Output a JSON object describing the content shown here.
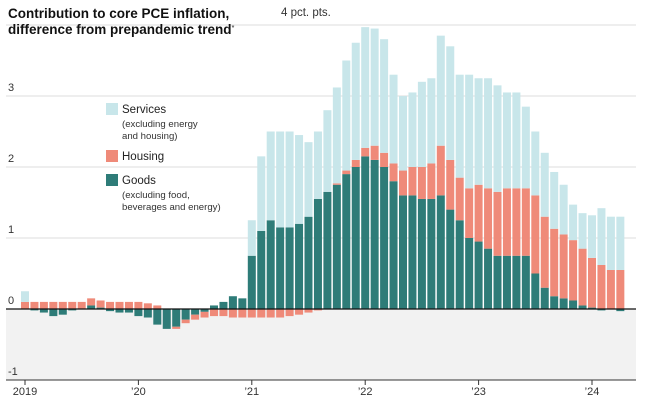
{
  "title": {
    "line1": "Contribution to core PCE inflation,",
    "line2": "difference from prepandemic trend",
    "footnote_mark": "*"
  },
  "unit_label": "4 pct. pts.",
  "legend": [
    {
      "name": "Services",
      "note": [
        "(excluding energy",
        "and housing)"
      ],
      "color": "#c8e6ea"
    },
    {
      "name": "Housing",
      "note": [],
      "color": "#ef8a79"
    },
    {
      "name": "Goods",
      "note": [
        "(excluding food,",
        "beverages and energy)"
      ],
      "color": "#2e7c78"
    }
  ],
  "chart_data": {
    "type": "bar",
    "stacked": true,
    "frequency": "monthly",
    "start": "2019-01",
    "ylim": [
      -1,
      4
    ],
    "yticks": [
      {
        "value": -1,
        "label": "-1"
      },
      {
        "value": 0,
        "label": "0"
      },
      {
        "value": 1,
        "label": "1"
      },
      {
        "value": 2,
        "label": "2"
      },
      {
        "value": 3,
        "label": "3"
      },
      {
        "value": 4,
        "label": "4 pct. pts."
      }
    ],
    "xticks": [
      {
        "date": "2019-01",
        "label": "2019"
      },
      {
        "date": "2020-01",
        "label": "’20"
      },
      {
        "date": "2021-01",
        "label": "’21"
      },
      {
        "date": "2022-01",
        "label": "’22"
      },
      {
        "date": "2023-01",
        "label": "’23"
      },
      {
        "date": "2024-01",
        "label": "’24"
      }
    ],
    "grid": true,
    "colors": {
      "services": "#c8e6ea",
      "housing": "#ef8a79",
      "goods": "#2e7c78",
      "negative_region": "#f2f2f2"
    },
    "series": [
      {
        "name": "Goods",
        "key": "goods",
        "values": [
          0.0,
          -0.02,
          -0.05,
          -0.1,
          -0.08,
          -0.02,
          0.0,
          0.05,
          0.02,
          -0.03,
          -0.05,
          -0.05,
          -0.1,
          -0.12,
          -0.22,
          -0.28,
          -0.25,
          -0.15,
          -0.08,
          -0.04,
          0.05,
          0.1,
          0.18,
          0.15,
          0.75,
          1.1,
          1.25,
          1.15,
          1.15,
          1.2,
          1.3,
          1.55,
          1.65,
          1.75,
          1.9,
          2.0,
          2.15,
          2.1,
          2.0,
          1.8,
          1.6,
          1.6,
          1.55,
          1.55,
          1.6,
          1.4,
          1.25,
          1.0,
          0.95,
          0.85,
          0.75,
          0.75,
          0.75,
          0.75,
          0.5,
          0.3,
          0.18,
          0.15,
          0.12,
          0.05,
          0.02,
          -0.02,
          0.0,
          -0.03
        ]
      },
      {
        "name": "Housing",
        "key": "housing",
        "values": [
          0.1,
          0.1,
          0.1,
          0.1,
          0.1,
          0.1,
          0.1,
          0.1,
          0.1,
          0.1,
          0.1,
          0.1,
          0.1,
          0.08,
          0.05,
          0.0,
          -0.03,
          -0.05,
          -0.07,
          -0.08,
          -0.1,
          -0.1,
          -0.12,
          -0.12,
          -0.12,
          -0.12,
          -0.12,
          -0.12,
          -0.1,
          -0.08,
          -0.05,
          -0.02,
          0.0,
          0.02,
          0.05,
          0.1,
          0.12,
          0.2,
          0.2,
          0.25,
          0.35,
          0.4,
          0.45,
          0.5,
          0.7,
          0.7,
          0.6,
          0.7,
          0.8,
          0.85,
          0.9,
          0.95,
          0.95,
          0.95,
          1.1,
          1.0,
          0.95,
          0.9,
          0.85,
          0.8,
          0.7,
          0.62,
          0.55,
          0.55
        ]
      },
      {
        "name": "Services",
        "key": "services",
        "values": [
          0.15,
          0.0,
          0.0,
          0.0,
          0.0,
          0.0,
          0.0,
          0.0,
          0.0,
          0.0,
          0.0,
          0.0,
          0.0,
          0.0,
          0.0,
          0.0,
          0.0,
          0.0,
          0.0,
          0.0,
          0.0,
          0.0,
          0.0,
          0.0,
          0.5,
          1.05,
          1.25,
          1.35,
          1.35,
          1.25,
          1.05,
          0.95,
          1.15,
          1.35,
          1.55,
          1.65,
          1.7,
          1.65,
          1.6,
          1.25,
          1.05,
          1.05,
          1.2,
          1.2,
          1.55,
          1.6,
          1.45,
          1.6,
          1.5,
          1.55,
          1.5,
          1.35,
          1.35,
          1.15,
          0.9,
          0.9,
          0.8,
          0.7,
          0.5,
          0.5,
          0.6,
          0.8,
          0.75,
          0.75
        ]
      }
    ]
  }
}
